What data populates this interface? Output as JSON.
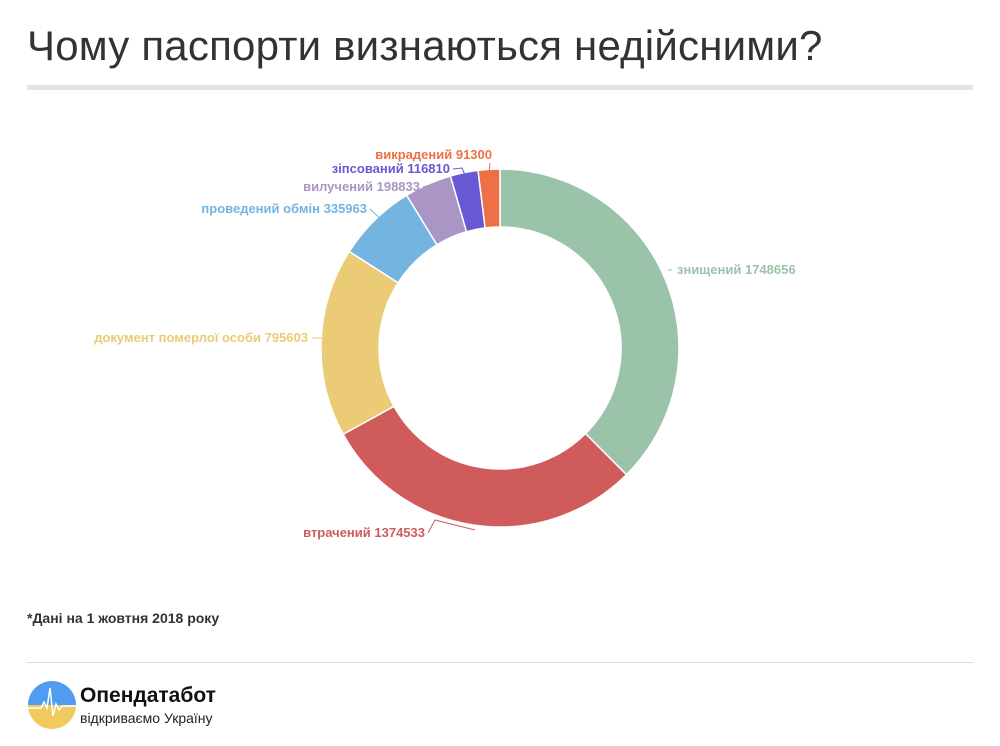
{
  "title": "Чому паспорти визнаються недійсними?",
  "note": "*Дані на 1 жовтня 2018 року",
  "brand": {
    "name": "Опендатабот",
    "tagline": "відкриваємо Україну"
  },
  "chart_data": {
    "type": "pie",
    "donut": true,
    "start": "top, clockwise",
    "slices": [
      {
        "label": "знищений",
        "value": 1748656,
        "color": "#9ac3aa",
        "text": "знищений 1748656"
      },
      {
        "label": "втрачений",
        "value": 1374533,
        "color": "#d05b5b",
        "text": "втрачений 1374533"
      },
      {
        "label": "документ померлої особи",
        "value": 795603,
        "color": "#ebcb75",
        "text": "документ померлої особи 795603"
      },
      {
        "label": "проведений обмін",
        "value": 335963,
        "color": "#74b4e0",
        "text": "проведений обмін 335963"
      },
      {
        "label": "вилучений",
        "value": 198833,
        "color": "#a996c4",
        "text": "вилучений 198833"
      },
      {
        "label": "зіпсований",
        "value": 116810,
        "color": "#6758d4",
        "text": "зіпсований 116810"
      },
      {
        "label": "викрадений",
        "value": 91300,
        "color": "#ed7046",
        "text": "викрадений 91300"
      }
    ]
  }
}
